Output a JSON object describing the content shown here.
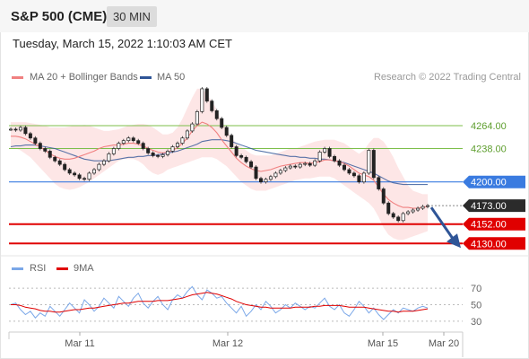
{
  "header": {
    "symbol": "S&P 500 (CME)",
    "timeframe": "30 MIN",
    "datetime": "Tuesday, March 15, 2022 1:10:03 AM CET"
  },
  "legend": {
    "ma20": "MA 20 + Bollinger Bands",
    "ma50": "MA 50",
    "credit": "Research © 2022 Trading Central"
  },
  "rsi_legend": {
    "rsi": "RSI",
    "ma": "9MA"
  },
  "colors": {
    "ma20": "#f08080",
    "bollinger_fill": "#fde2e2",
    "ma50": "#2f5597",
    "resistance": "#7cbf4a",
    "pivot": "#3a7be0",
    "support": "#e00000",
    "arrow": "#2f5597",
    "rsi": "#7aa7e8",
    "rsi_ma": "#e00000"
  },
  "chart_data": {
    "type": "line",
    "y_range": [
      4118,
      4310
    ],
    "current_price": "4173.00",
    "levels": [
      {
        "label": "4264.00",
        "value": 4264,
        "kind": "resistance"
      },
      {
        "label": "4238.00",
        "value": 4238,
        "kind": "resistance"
      },
      {
        "label": "4200.00",
        "value": 4200,
        "kind": "pivot"
      },
      {
        "label": "4152.00",
        "value": 4152,
        "kind": "support"
      },
      {
        "label": "4130.00",
        "value": 4130,
        "kind": "support"
      }
    ],
    "x_ticks": [
      "Mar 11",
      "Mar 12",
      "Mar 15",
      "Mar 20"
    ],
    "price_series": [
      4260,
      4259,
      4262,
      4255,
      4250,
      4244,
      4238,
      4235,
      4228,
      4224,
      4220,
      4214,
      4210,
      4208,
      4204,
      4203,
      4210,
      4214,
      4220,
      4224,
      4232,
      4238,
      4244,
      4247,
      4250,
      4247,
      4244,
      4238,
      4233,
      4230,
      4229,
      4231,
      4235,
      4240,
      4244,
      4250,
      4258,
      4266,
      4280,
      4306,
      4292,
      4281,
      4272,
      4262,
      4253,
      4240,
      4230,
      4228,
      4223,
      4217,
      4204,
      4200,
      4203,
      4206,
      4210,
      4213,
      4216,
      4218,
      4217,
      4220,
      4221,
      4219,
      4224,
      4234,
      4238,
      4229,
      4224,
      4219,
      4214,
      4210,
      4207,
      4200,
      4210,
      4236,
      4205,
      4192,
      4176,
      4164,
      4160,
      4156,
      4164,
      4166,
      4168,
      4170,
      4172,
      4173
    ],
    "ma20_series": [
      4252,
      4252,
      4251,
      4249,
      4246,
      4243,
      4240,
      4236,
      4232,
      4229,
      4227,
      4226,
      4226,
      4227,
      4229,
      4231,
      4233,
      4235,
      4238,
      4240,
      4241,
      4242,
      4242,
      4243,
      4244,
      4244,
      4243,
      4241,
      4238,
      4236,
      4234,
      4233,
      4234,
      4236,
      4239,
      4244,
      4250,
      4258,
      4264,
      4268,
      4266,
      4262,
      4256,
      4248,
      4241,
      4234,
      4227,
      4222,
      4218,
      4215,
      4213,
      4212,
      4213,
      4214,
      4216,
      4218,
      4219,
      4220,
      4221,
      4222,
      4222,
      4221,
      4222,
      4223,
      4225,
      4225,
      4224,
      4223,
      4221,
      4218,
      4214,
      4210,
      4208,
      4206,
      4202,
      4194,
      4186,
      4180,
      4176,
      4173,
      4171,
      4171,
      4170,
      4170,
      4171,
      4172
    ],
    "bb_upper": [
      4268,
      4268,
      4268,
      4268,
      4267,
      4266,
      4265,
      4264,
      4262,
      4262,
      4262,
      4262,
      4263,
      4264,
      4264,
      4265,
      4264,
      4262,
      4260,
      4258,
      4258,
      4259,
      4260,
      4262,
      4264,
      4265,
      4266,
      4266,
      4265,
      4262,
      4258,
      4254,
      4254,
      4256,
      4262,
      4272,
      4284,
      4296,
      4306,
      4306,
      4300,
      4292,
      4282,
      4270,
      4260,
      4250,
      4244,
      4240,
      4236,
      4232,
      4230,
      4230,
      4230,
      4230,
      4232,
      4234,
      4236,
      4238,
      4238,
      4240,
      4242,
      4244,
      4246,
      4247,
      4248,
      4248,
      4248,
      4246,
      4244,
      4240,
      4236,
      4232,
      4236,
      4244,
      4250,
      4250,
      4246,
      4238,
      4228,
      4216,
      4206,
      4196,
      4190,
      4188,
      4186,
      4186
    ],
    "bb_lower": [
      4238,
      4238,
      4236,
      4232,
      4228,
      4222,
      4216,
      4210,
      4204,
      4198,
      4194,
      4192,
      4191,
      4192,
      4194,
      4197,
      4200,
      4204,
      4208,
      4212,
      4216,
      4220,
      4224,
      4226,
      4226,
      4226,
      4224,
      4220,
      4214,
      4210,
      4208,
      4210,
      4214,
      4216,
      4218,
      4220,
      4222,
      4224,
      4226,
      4228,
      4228,
      4228,
      4226,
      4222,
      4218,
      4212,
      4206,
      4200,
      4196,
      4192,
      4190,
      4190,
      4190,
      4192,
      4194,
      4196,
      4198,
      4200,
      4202,
      4203,
      4204,
      4204,
      4205,
      4206,
      4206,
      4206,
      4204,
      4200,
      4196,
      4192,
      4188,
      4184,
      4180,
      4176,
      4170,
      4160,
      4148,
      4140,
      4136,
      4134,
      4134,
      4136,
      4138,
      4140,
      4142,
      4144
    ],
    "ma50_series": [
      4240,
      4241,
      4241,
      4242,
      4242,
      4242,
      4241,
      4240,
      4239,
      4238,
      4236,
      4234,
      4232,
      4230,
      4228,
      4226,
      4225,
      4224,
      4224,
      4224,
      4224,
      4225,
      4226,
      4227,
      4228,
      4228,
      4229,
      4229,
      4230,
      4230,
      4231,
      4232,
      4233,
      4234,
      4235,
      4237,
      4239,
      4241,
      4243,
      4246,
      4247,
      4248,
      4248,
      4248,
      4247,
      4246,
      4244,
      4242,
      4240,
      4238,
      4236,
      4235,
      4234,
      4233,
      4232,
      4231,
      4230,
      4229,
      4229,
      4228,
      4228,
      4227,
      4227,
      4226,
      4226,
      4225,
      4224,
      4223,
      4222,
      4220,
      4218,
      4216,
      4214,
      4212,
      4210,
      4207,
      4204,
      4201,
      4199,
      4198,
      4197,
      4197,
      4197,
      4197,
      4197,
      4197
    ],
    "rsi": {
      "y_range": [
        20,
        80
      ],
      "levels": [
        70,
        50,
        30
      ],
      "values": [
        50,
        52,
        44,
        38,
        42,
        34,
        40,
        36,
        48,
        42,
        36,
        44,
        52,
        46,
        40,
        56,
        50,
        42,
        48,
        58,
        52,
        46,
        60,
        54,
        48,
        58,
        64,
        52,
        46,
        54,
        60,
        50,
        44,
        56,
        62,
        58,
        66,
        72,
        62,
        56,
        68,
        64,
        58,
        60,
        52,
        46,
        40,
        48,
        36,
        42,
        50,
        44,
        54,
        48,
        40,
        44,
        50,
        46,
        52,
        48,
        44,
        48,
        46,
        52,
        58,
        48,
        44,
        50,
        40,
        36,
        44,
        54,
        48,
        40,
        46,
        38,
        32,
        38,
        44,
        40,
        46,
        44,
        42,
        46,
        48,
        46
      ],
      "ma_values": [
        50,
        50,
        49,
        47,
        46,
        45,
        43,
        42,
        42,
        41,
        41,
        42,
        43,
        44,
        44,
        45,
        46,
        46,
        47,
        48,
        49,
        50,
        51,
        52,
        52,
        53,
        54,
        54,
        54,
        54,
        55,
        55,
        55,
        56,
        57,
        58,
        60,
        62,
        63,
        64,
        65,
        64,
        63,
        61,
        59,
        57,
        54,
        52,
        50,
        49,
        48,
        47,
        47,
        46,
        46,
        46,
        46,
        46,
        47,
        47,
        47,
        47,
        48,
        48,
        49,
        49,
        49,
        49,
        48,
        47,
        47,
        47,
        47,
        46,
        45,
        44,
        43,
        42,
        42,
        41,
        42,
        42,
        42,
        43,
        44,
        45
      ]
    }
  }
}
